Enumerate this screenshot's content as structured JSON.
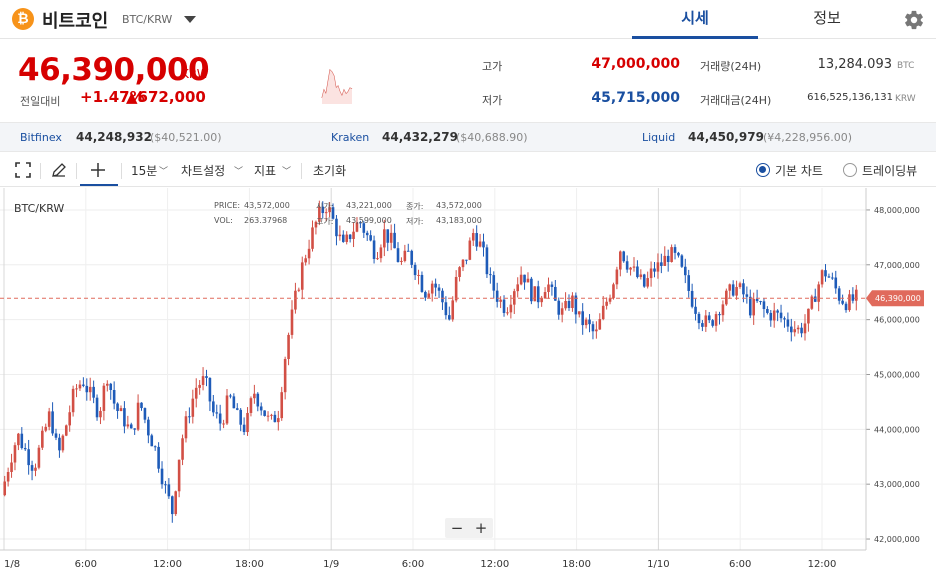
{
  "header": {
    "coin_logo": "₿",
    "coin_name": "비트코인",
    "pair": "BTC/KRW",
    "tabs": [
      {
        "label": "시세"
      },
      {
        "label": "정보"
      }
    ]
  },
  "summary": {
    "price": "46,390,000",
    "price_unit": "KRW",
    "change_label": "전일대비",
    "change_pct": "+1.47%",
    "change_amt": "▲672,000",
    "high_label": "고가",
    "high": "47,000,000",
    "low_label": "저가",
    "low": "45,715,000",
    "volume_label": "거래량(24H)",
    "volume": "13,284.093",
    "volume_unit": "BTC",
    "amount_label": "거래대금(24H)",
    "amount": "616,525,136,131",
    "amount_unit": "KRW"
  },
  "exchanges": [
    {
      "name": "Bitfinex",
      "price": "44,248,932",
      "sub": "($40,521.00)"
    },
    {
      "name": "Kraken",
      "price": "44,432,279",
      "sub": "($40,688.90)"
    },
    {
      "name": "Liquid",
      "price": "44,450,979",
      "sub": "(¥4,228,956.00)"
    }
  ],
  "toolbar": {
    "interval": "15분",
    "chart_settings": "차트설정",
    "indicators": "지표",
    "reset": "초기화",
    "basic_chart": "기본 차트",
    "tradingview": "트레이딩뷰"
  },
  "chart": {
    "symbol": "BTC/KRW",
    "ohlc": {
      "price_label": "PRICE:",
      "price": "43,572,000",
      "vol_label": "VOL:",
      "vol": "263.37968",
      "open_label": "시가:",
      "open": "43,221,000",
      "high_label": "고가:",
      "high": "43,599,000",
      "close_label": "종가:",
      "close": "43,572,000",
      "low_label": "저가:",
      "low": "43,183,000"
    },
    "current_price_tag": "46,390,000",
    "zoom_out": "−",
    "zoom_in": "+",
    "colors": {
      "up": "#d24f45",
      "down": "#1e5bb8",
      "price_line": "#e06a5c"
    }
  },
  "chart_data": {
    "type": "candlestick",
    "y_ticks": [
      "48,000,000",
      "47,000,000",
      "46,000,000",
      "45,000,000",
      "44,000,000",
      "43,000,000",
      "42,000,000"
    ],
    "x_ticks": [
      "1/8",
      "6:00",
      "12:00",
      "18:00",
      "1/9",
      "6:00",
      "12:00",
      "18:00",
      "1/10",
      "6:00",
      "12:00"
    ],
    "ylim": [
      41800000,
      48400000
    ],
    "current_price": 46390000,
    "close_path": [
      42800000,
      43400000,
      43900000,
      43600000,
      43300000,
      43800000,
      44300000,
      43500000,
      44100000,
      44700000,
      44900000,
      44600000,
      44300000,
      45000000,
      44400000,
      44200000,
      43900000,
      44500000,
      44000000,
      43600000,
      43000000,
      42500000,
      43700000,
      44300000,
      44800000,
      44900000,
      44300000,
      44100000,
      44600000,
      44200000,
      44000000,
      44700000,
      44400000,
      44100000,
      44300000,
      45500000,
      46300000,
      47000000,
      47500000,
      47900000,
      48100000,
      47700000,
      47300000,
      47600000,
      47800000,
      47500000,
      47200000,
      47600000,
      47400000,
      47000000,
      47200000,
      46900000,
      46500000,
      46700000,
      46400000,
      46000000,
      46800000,
      47100000,
      47600000,
      47300000,
      46700000,
      46400000,
      46200000,
      46600000,
      46900000,
      46500000,
      46400000,
      46700000,
      46300000,
      46100000,
      46400000,
      46000000,
      45900000,
      45700000,
      46200000,
      46600000,
      47300000,
      47000000,
      46800000,
      46600000,
      46900000,
      47000000,
      47200000,
      47100000,
      46700000,
      46300000,
      46000000,
      45900000,
      46200000,
      46400000,
      46600000,
      46500000,
      46200000,
      46300000,
      46100000,
      46100000,
      46000000,
      45900000,
      45800000,
      46000000,
      46500000,
      46900000,
      46700000,
      46400000,
      46300000,
      46390000
    ]
  }
}
